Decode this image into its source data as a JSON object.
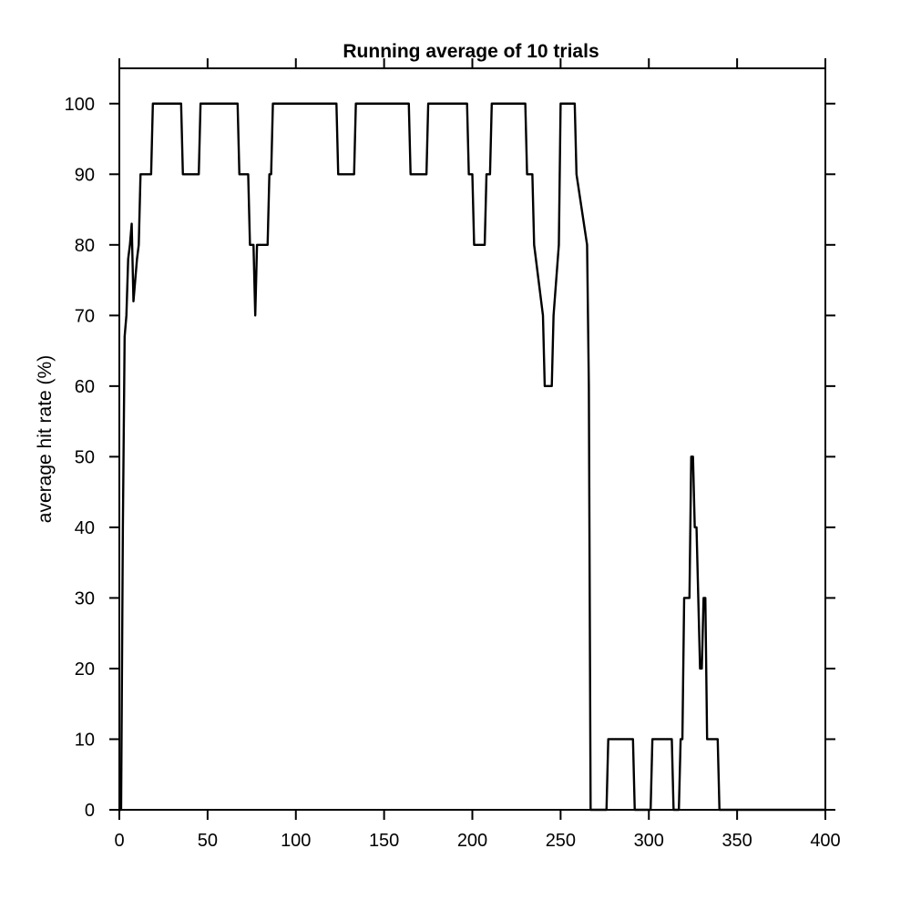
{
  "chart_data": {
    "type": "line",
    "title": "Running average of 10 trials",
    "xlabel": "",
    "ylabel": "average hit rate (%)",
    "xlim": [
      0,
      400
    ],
    "ylim": [
      0,
      105
    ],
    "xticks": [
      0,
      50,
      100,
      150,
      200,
      250,
      300,
      350,
      400
    ],
    "yticks": [
      0,
      10,
      20,
      30,
      40,
      50,
      60,
      70,
      80,
      90,
      100
    ],
    "grid": false,
    "series": [
      {
        "x": [
          0,
          1,
          2,
          3,
          4,
          5,
          6,
          7,
          8,
          9,
          10,
          11,
          12,
          13,
          14,
          15,
          16,
          17,
          18,
          19,
          20,
          35,
          36,
          45,
          46,
          67,
          68,
          73,
          74,
          75,
          76,
          77,
          78,
          84,
          85,
          86,
          87,
          123,
          124,
          133,
          134,
          164,
          165,
          174,
          175,
          197,
          198,
          200,
          201,
          207,
          208,
          210,
          211,
          230,
          231,
          234,
          235,
          240,
          241,
          245,
          246,
          249,
          250,
          258,
          259,
          265,
          266,
          267,
          268,
          276,
          277,
          278,
          279,
          291,
          292,
          293,
          294,
          301,
          302,
          303,
          304,
          313,
          314,
          315,
          316,
          317,
          318,
          319,
          320,
          321,
          322,
          323,
          324,
          325,
          326,
          327,
          328,
          329,
          330,
          331,
          332,
          333,
          334,
          338,
          339,
          340,
          400
        ],
        "y": [
          0,
          0,
          40,
          67,
          70,
          78,
          80,
          83,
          72,
          75,
          78,
          80,
          90,
          90,
          90,
          90,
          90,
          90,
          90,
          100,
          100,
          100,
          90,
          90,
          100,
          100,
          90,
          90,
          80,
          80,
          80,
          70,
          80,
          80,
          90,
          90,
          100,
          100,
          90,
          90,
          100,
          100,
          90,
          90,
          100,
          100,
          90,
          90,
          80,
          80,
          90,
          90,
          100,
          100,
          90,
          90,
          80,
          70,
          60,
          60,
          70,
          80,
          100,
          100,
          90,
          80,
          60,
          0,
          0,
          0,
          10,
          10,
          10,
          10,
          0,
          0,
          0,
          0,
          10,
          10,
          10,
          10,
          0,
          0,
          0,
          0,
          10,
          10,
          30,
          30,
          30,
          30,
          50,
          50,
          40,
          40,
          30,
          20,
          20,
          30,
          30,
          10,
          10,
          10,
          10,
          0,
          0
        ],
        "_note_unused": ""
      }
    ]
  }
}
